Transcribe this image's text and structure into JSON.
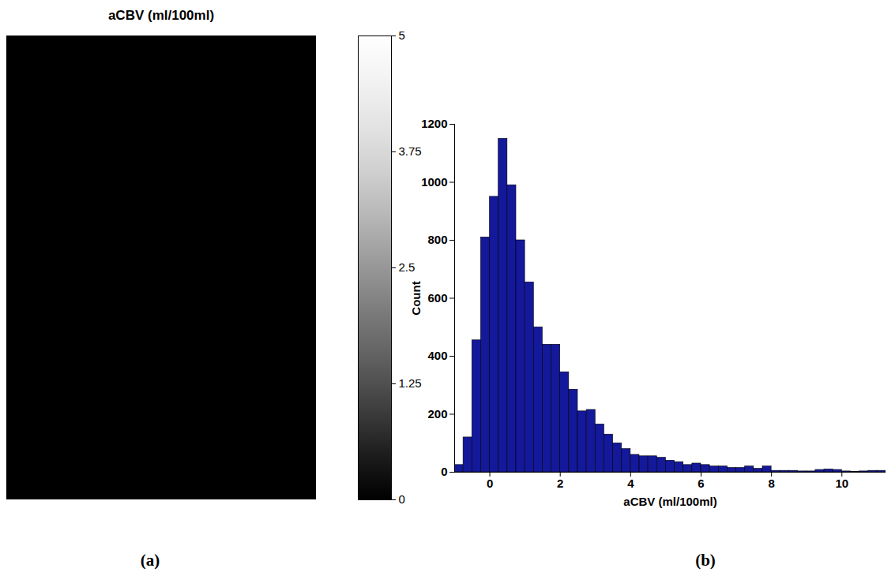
{
  "chart_data": [
    {
      "type": "image",
      "title": "aCBV (ml/100ml)",
      "color": "gray",
      "colorbar": {
        "range": [
          0,
          5
        ],
        "ticks": [
          0,
          1.25,
          2.5,
          3.75,
          5
        ]
      },
      "panel_label": "(a)"
    },
    {
      "type": "histogram",
      "xlabel": "aCBV (ml/100ml)",
      "ylabel": "Count",
      "bins": [
        -1,
        -0.75,
        -0.5,
        -0.25,
        0,
        0.25,
        0.5,
        0.75,
        1,
        1.25,
        1.5,
        1.75,
        2,
        2.25,
        2.5,
        2.75,
        3,
        3.25,
        3.5,
        3.75,
        4,
        4.25,
        4.5,
        4.75,
        5,
        5.25,
        5.5,
        5.75,
        6,
        6.25,
        6.5,
        6.75,
        7,
        7.25,
        7.5,
        7.75,
        8,
        8.25,
        8.5,
        8.75,
        9,
        9.25,
        9.5,
        9.75,
        10,
        10.25,
        10.5,
        10.75,
        11,
        11.25
      ],
      "counts": [
        25,
        120,
        455,
        810,
        950,
        1150,
        990,
        800,
        655,
        500,
        440,
        440,
        345,
        285,
        210,
        215,
        165,
        130,
        100,
        80,
        60,
        55,
        55,
        50,
        40,
        35,
        25,
        30,
        25,
        20,
        20,
        15,
        15,
        20,
        12,
        20,
        5,
        5,
        5,
        3,
        3,
        8,
        10,
        8,
        3,
        2,
        3,
        5,
        5
      ],
      "color": "#14189a",
      "xlim": [
        -1,
        11.25
      ],
      "xticks": [
        0,
        2,
        4,
        6,
        8,
        10
      ],
      "ylim": [
        0,
        1200
      ],
      "yticks": [
        0,
        200,
        400,
        600,
        800,
        1000,
        1200
      ],
      "panel_label": "(b)"
    }
  ]
}
